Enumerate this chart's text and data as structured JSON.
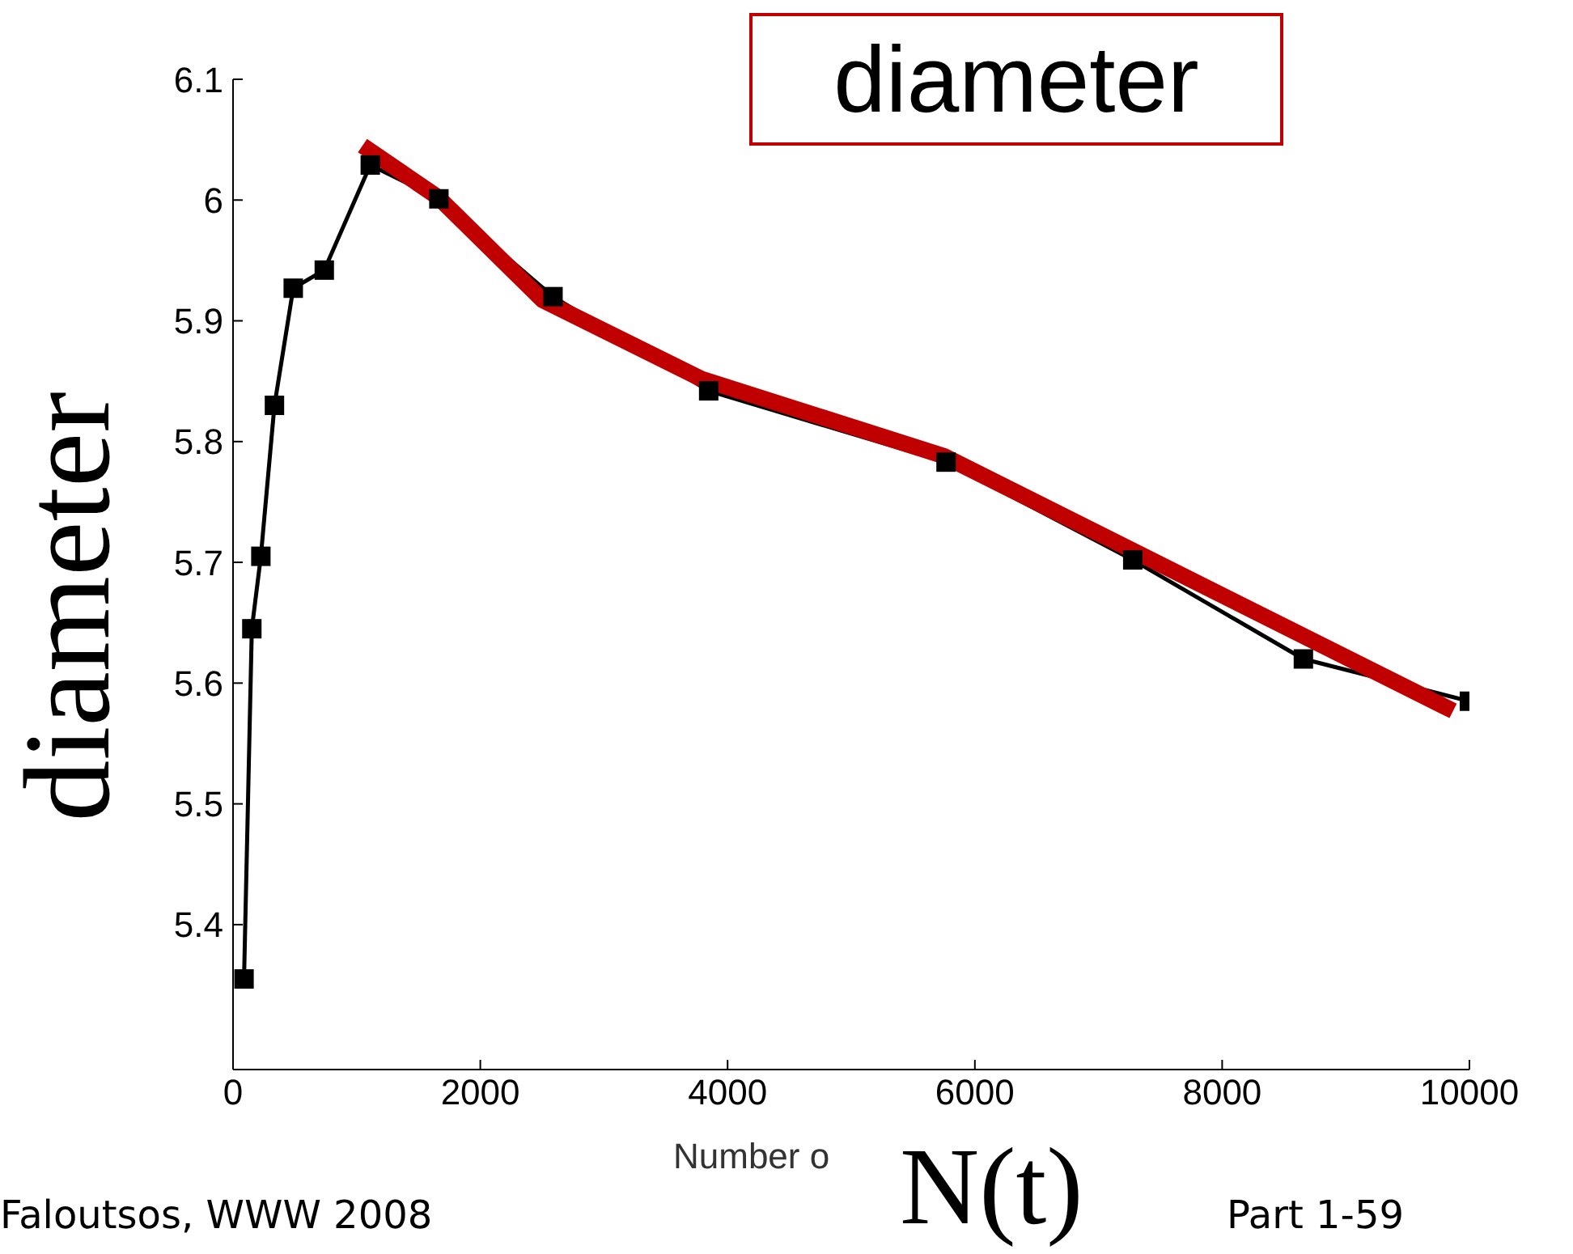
{
  "chart_data": {
    "type": "line",
    "title": "diameter",
    "ylabel": "diameter",
    "xlabel": "N(t)",
    "annotations": [
      "Number o",
      "Faloutsos, WWW 2008",
      "Part 1-59"
    ],
    "xlim": [
      0,
      10000
    ],
    "ylim": [
      5.28,
      6.1
    ],
    "xticks": [
      0,
      2000,
      4000,
      6000,
      8000,
      10000
    ],
    "yticks": [
      5.4,
      5.5,
      5.6,
      5.7,
      5.8,
      5.9,
      6,
      6.1
    ],
    "marker": "square",
    "line_style": "solid",
    "grid": false,
    "legend": false,
    "series": [
      {
        "color": "#000000",
        "x": [
          89,
          152,
          225,
          335,
          487,
          738,
          1110,
          1665,
          2588,
          3847,
          5767,
          7277,
          8657,
          10000
        ],
        "values": [
          5.355,
          5.645,
          5.705,
          5.83,
          5.927,
          5.942,
          6.029,
          6.001,
          5.92,
          5.842,
          5.783,
          5.702,
          5.62,
          5.585
        ]
      },
      {
        "type": "line",
        "color": "#c00000",
        "marker": "none",
        "x": [
          1047,
          1662,
          2505,
          3787,
          5750,
          9868
        ],
        "values": [
          6.045,
          6.002,
          5.917,
          5.852,
          5.788,
          5.577
        ]
      }
    ]
  }
}
